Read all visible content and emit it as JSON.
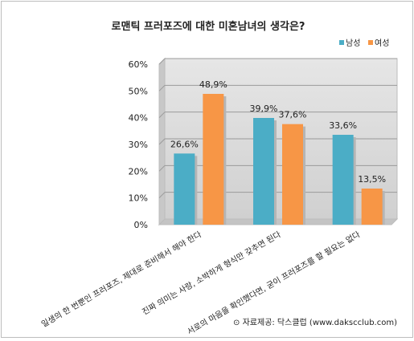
{
  "chart_data": {
    "type": "bar",
    "title": "로맨틱 프러포즈에 대한 미혼남녀의 생각은?",
    "categories": [
      "일생의 한 번뿐인 프러포즈, 제대로 준비해서 해야 한다",
      "진짜 의미는 사랑, 소박하게 형식만 갖추면 된다",
      "서로의 마음을 확인했다면, 굳이 프러포즈를 할 필요는 없다"
    ],
    "series": [
      {
        "name": "남성",
        "values": [
          26.6,
          39.9,
          33.6
        ],
        "labels": [
          "26,6%",
          "39,9%",
          "33,6%"
        ],
        "color": "#4badc6"
      },
      {
        "name": "여성",
        "values": [
          48.9,
          37.6,
          13.5
        ],
        "labels": [
          "48,9%",
          "37,6%",
          "13,5%"
        ],
        "color": "#f79646"
      }
    ],
    "ylim": [
      0,
      60
    ],
    "yticks": [
      0,
      10,
      20,
      30,
      40,
      50,
      60
    ],
    "ytick_labels": [
      "0%",
      "10%",
      "20%",
      "30%",
      "40%",
      "50%",
      "60%"
    ],
    "xlabel": "",
    "ylabel": "",
    "grid": true,
    "legend_position": "top-right",
    "plot_background": "#d9d9d9",
    "source": "⊙ 자료제공: 닥스클럽 (www.dakscclub.com)"
  }
}
